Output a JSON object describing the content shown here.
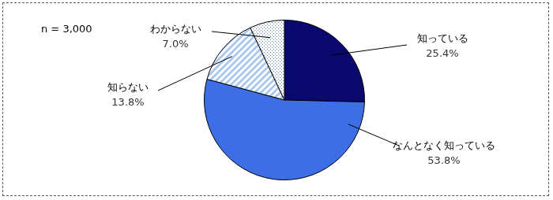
{
  "chart_data": {
    "type": "pie",
    "annotation": "n = 3,000",
    "categories": [
      "知っている",
      "なんとなく知っている",
      "知らない",
      "わからない"
    ],
    "values": [
      25.4,
      53.8,
      13.8,
      7.0
    ],
    "value_labels": [
      "25.4%",
      "53.8%",
      "13.8%",
      "7.0%"
    ],
    "colors": [
      "#0a0a6e",
      "#3d6ee6",
      "#a9c8ee",
      "#cfe0f5"
    ],
    "data_labels": true
  }
}
